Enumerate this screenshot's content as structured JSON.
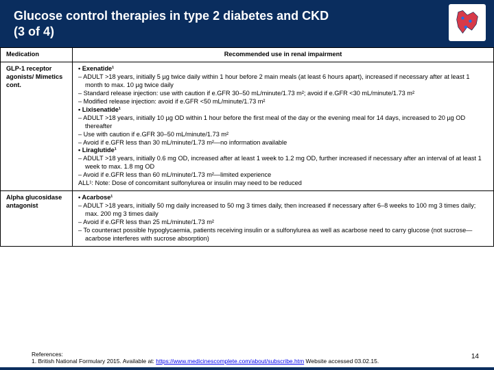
{
  "header": {
    "title_line1": "Glucose control therapies in type 2 diabetes and CKD",
    "title_line2": "(3 of 4)"
  },
  "columns": {
    "medication": "Medication",
    "recommended": "Recommended use in renal impairment"
  },
  "rows": [
    {
      "medication": "GLP-1 receptor agonists/ Mimetics cont.",
      "drugs": [
        {
          "name": "• Exenatide¹",
          "lines": [
            "ADULT >18 years, initially 5 µg twice daily within 1 hour before 2 main meals (at least 6 hours apart), increased if necessary after at least 1 month to max. 10 µg twice daily",
            "Standard release injection: use with caution if e.GFR 30–50 mL/minute/1.73 m²; avoid if e.GFR <30 mL/minute/1.73 m²",
            "Modified release injection: avoid if e.GFR <50 mL/minute/1.73 m²"
          ]
        },
        {
          "name": "• Lixisenatide¹",
          "lines": [
            "ADULT >18 years, initially 10 µg OD within 1 hour before the first meal of the day or the evening meal for 14 days, increased to 20 µg OD thereafter",
            "Use with caution if e.GFR 30–50 mL/minute/1.73 m²",
            "Avoid if e.GFR less than 30 mL/minute/1.73 m²—no information available"
          ]
        },
        {
          "name": "• Liraglutide¹",
          "lines": [
            "ADULT >18 years, initially 0.6 mg OD, increased after at least 1 week to 1.2 mg OD, further increased if necessary after an interval of at least 1 week to max. 1.8 mg OD",
            "Avoid if e.GFR less than 60 mL/minute/1.73 m²—limited experience"
          ]
        }
      ],
      "tail": "ALL¹: Note: Dose of concomitant sulfonylurea or insulin may need to be reduced"
    },
    {
      "medication": "Alpha glucosidase antagonist",
      "drugs": [
        {
          "name": "• Acarbose¹",
          "lines": [
            "ADULT >18 years, initially 50 mg daily increased to 50 mg 3 times daily, then increased if necessary after 6–8 weeks to 100 mg 3 times daily; max. 200 mg 3 times daily",
            "Avoid if e.GFR less than 25 mL/minute/1.73 m²",
            "To counteract possible hypoglycaemia, patients receiving insulin or a sulfonylurea as well as acarbose need to carry glucose (not sucrose—acarbose interferes with sucrose absorption)"
          ]
        }
      ],
      "tail": ""
    }
  ],
  "refs": {
    "label": "References:",
    "text1": "1. British National Formulary 2015. Available at: ",
    "link": "https://www.medicinescomplete.com/about/subscribe.htm",
    "text2": " Website accessed 03.02.15."
  },
  "page_number": "14",
  "colors": {
    "header_bg": "#0a2d5e"
  }
}
